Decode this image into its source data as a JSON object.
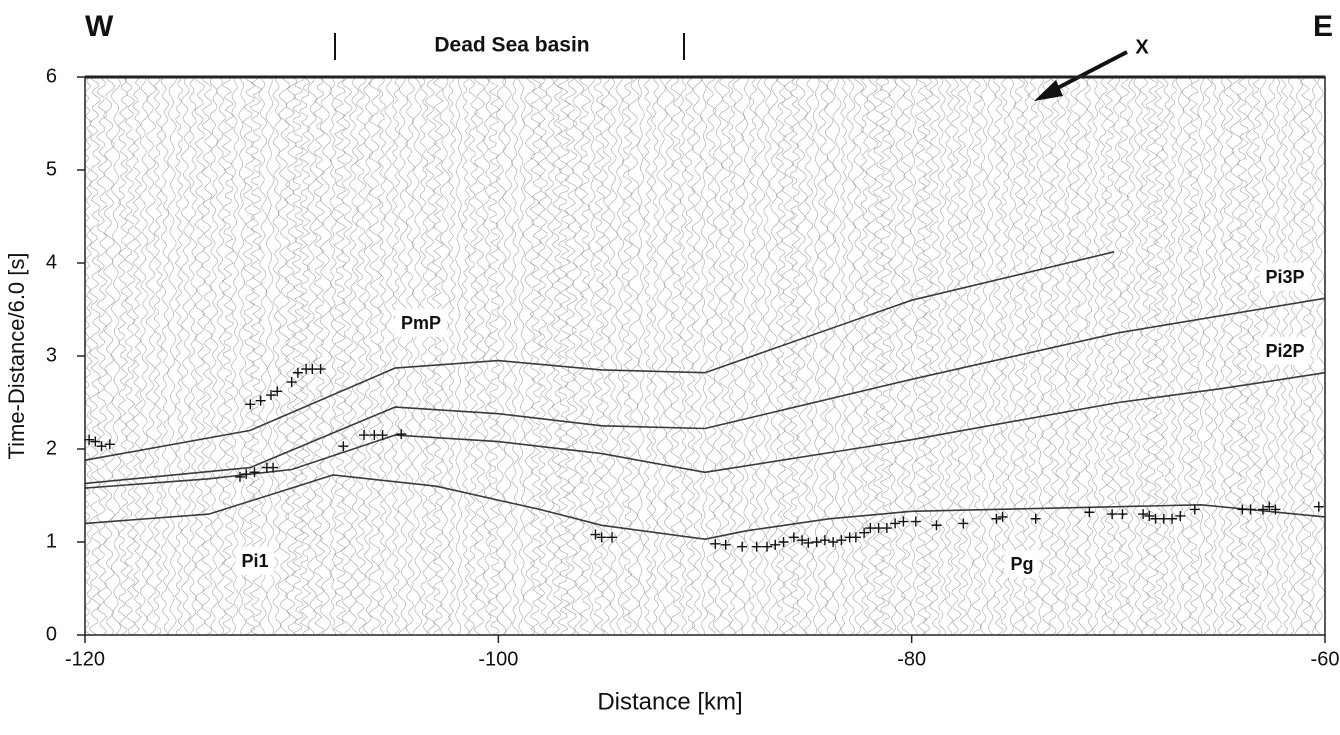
{
  "chart_data": {
    "type": "line",
    "xlabel": "Distance [km]",
    "ylabel": "Time-Distance/6.0 [s]",
    "xlim": [
      -120,
      -60
    ],
    "ylim": [
      0,
      6
    ],
    "xticks": [
      -120,
      -100,
      -80,
      -60
    ],
    "yticks": [
      0,
      1,
      2,
      3,
      4,
      5,
      6
    ],
    "annotations": [
      {
        "text": "W"
      },
      {
        "text": "E"
      },
      {
        "text": "Dead Sea basin"
      },
      {
        "text": "X"
      },
      {
        "text": "PmP"
      },
      {
        "text": "Pi1"
      },
      {
        "text": "Pg"
      },
      {
        "text": "Pi3P"
      },
      {
        "text": "Pi2P"
      }
    ],
    "series": [
      {
        "type": "line",
        "color": "#3a3a3a",
        "x": [
          -120,
          -114,
          -108,
          -103,
          -98,
          -95,
          -90,
          -88,
          -84,
          -80,
          -76,
          -70,
          -66,
          -60
        ],
        "values": [
          1.2,
          1.3,
          1.72,
          1.6,
          1.35,
          1.18,
          1.03,
          1.12,
          1.25,
          1.33,
          1.35,
          1.38,
          1.4,
          1.27
        ]
      },
      {
        "type": "line",
        "color": "#3a3a3a",
        "x": [
          -120,
          -114,
          -110,
          -105,
          -100,
          -95,
          -90,
          -80,
          -70,
          -65,
          -60
        ],
        "values": [
          1.58,
          1.68,
          1.78,
          2.15,
          2.08,
          1.95,
          1.75,
          2.1,
          2.5,
          2.65,
          2.82
        ]
      },
      {
        "type": "line",
        "color": "#3a3a3a",
        "x": [
          -120,
          -112,
          -105,
          -100,
          -95,
          -90,
          -80,
          -70,
          -60
        ],
        "values": [
          1.63,
          1.8,
          2.45,
          2.38,
          2.25,
          2.22,
          2.75,
          3.25,
          3.62
        ]
      },
      {
        "type": "line",
        "color": "#3a3a3a",
        "x": [
          -120,
          -112,
          -105,
          -100,
          -95,
          -90,
          -80,
          -70.2
        ],
        "values": [
          1.88,
          2.2,
          2.87,
          2.95,
          2.85,
          2.82,
          3.6,
          4.12
        ]
      },
      {
        "type": "scatter",
        "marker": "+",
        "color": "#111",
        "x": [
          -119.8,
          -119.5,
          -119.2,
          -118.8,
          -112,
          -111.5,
          -111,
          -110.7,
          -110,
          -109.7,
          -109.3,
          -109,
          -108.6,
          -112.5,
          -112.2,
          -111.8,
          -111.2,
          -110.9,
          -107.5,
          -106.5,
          -106,
          -105.6,
          -104.7,
          -95.3,
          -95,
          -94.5,
          -89.5,
          -89,
          -88.2,
          -87.5,
          -87,
          -86.6,
          -86.2,
          -85.7,
          -85.3,
          -85,
          -84.6,
          -84.2,
          -83.8,
          -83.4,
          -83,
          -82.7,
          -82.3,
          -82,
          -81.6,
          -81.2,
          -80.8,
          -80.4,
          -79.8,
          -78.8,
          -77.5,
          -75.9,
          -75.6,
          -74,
          -71.4,
          -70.3,
          -69.8,
          -68.8,
          -68.5,
          -68.2,
          -67.8,
          -67.4,
          -67,
          -66.3,
          -64,
          -63.6,
          -63,
          -62.7,
          -62.4,
          -60.3
        ],
        "values": [
          2.1,
          2.08,
          2.03,
          2.05,
          2.48,
          2.52,
          2.58,
          2.62,
          2.72,
          2.82,
          2.86,
          2.86,
          2.86,
          1.7,
          1.73,
          1.75,
          1.8,
          1.8,
          2.03,
          2.15,
          2.15,
          2.15,
          2.16,
          1.08,
          1.05,
          1.05,
          0.98,
          0.97,
          0.95,
          0.95,
          0.95,
          0.97,
          1.0,
          1.05,
          1.02,
          0.99,
          1.0,
          1.02,
          1.0,
          1.02,
          1.05,
          1.05,
          1.1,
          1.15,
          1.15,
          1.15,
          1.2,
          1.22,
          1.22,
          1.18,
          1.2,
          1.25,
          1.27,
          1.25,
          1.32,
          1.3,
          1.3,
          1.3,
          1.28,
          1.25,
          1.25,
          1.25,
          1.28,
          1.35,
          1.35,
          1.35,
          1.35,
          1.38,
          1.35,
          1.38
        ]
      }
    ]
  }
}
